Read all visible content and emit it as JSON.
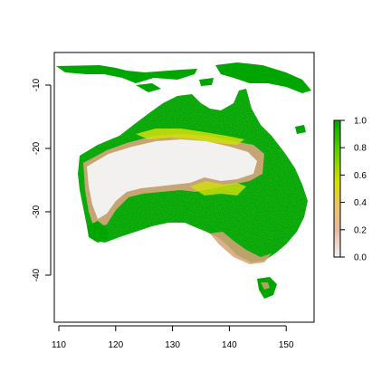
{
  "map": {
    "x_ticks": [
      "110",
      "120",
      "130",
      "140",
      "150"
    ],
    "y_ticks": [
      "-10",
      "-20",
      "-30",
      "-40"
    ],
    "x_range": [
      109,
      155
    ],
    "y_range": [
      -48,
      -5
    ],
    "legend": {
      "labels": [
        "0.0",
        "0.2",
        "0.4",
        "0.6",
        "0.8",
        "1.0"
      ],
      "range": [
        0,
        1
      ],
      "colors": [
        "#f2f2f2",
        "#e6b9a3",
        "#ebc65e",
        "#d6df00",
        "#55cb00",
        "#00a600"
      ]
    },
    "colors": {
      "high": "#00a600",
      "mid": "#cfe000",
      "low_tan": "#d9a27a",
      "low": "#f2f2f2"
    }
  }
}
